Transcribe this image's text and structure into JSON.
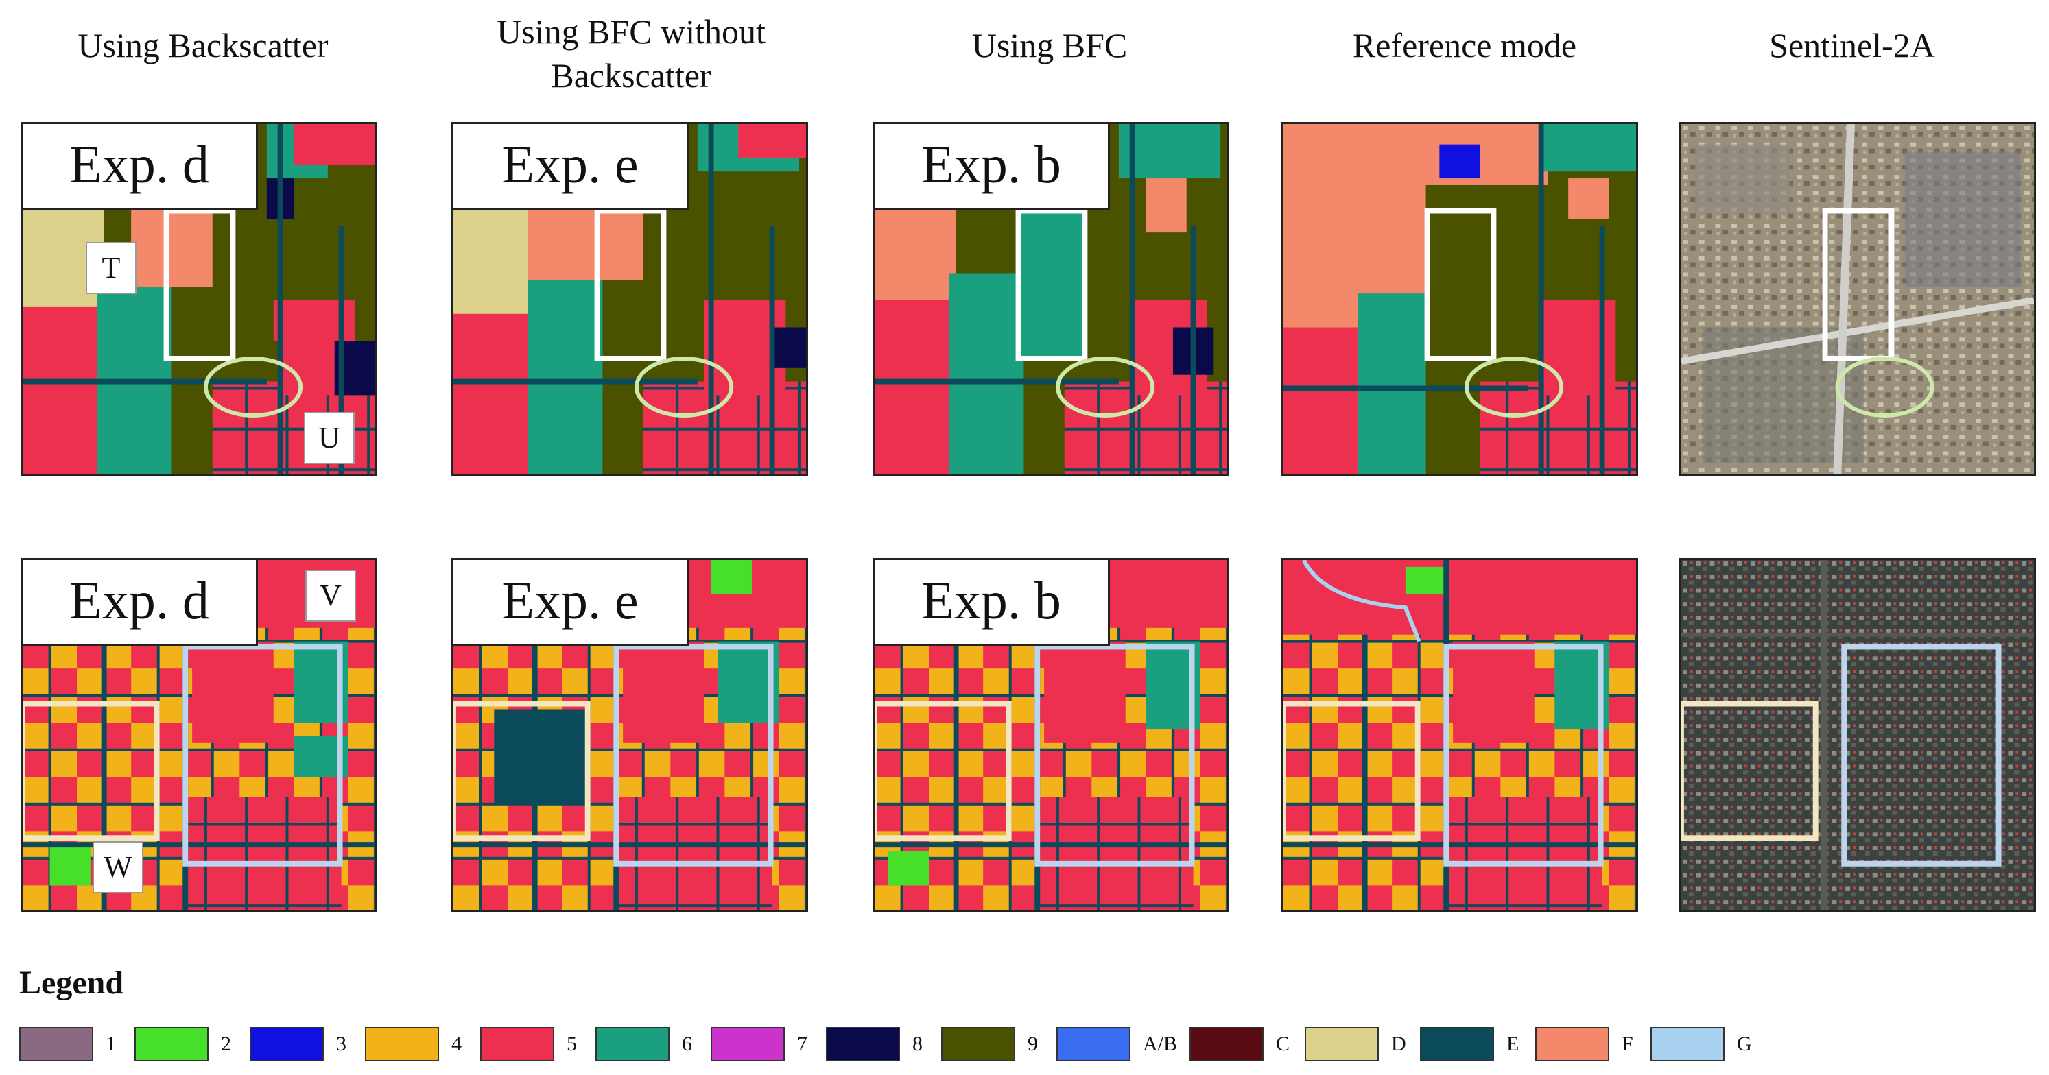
{
  "columns": [
    {
      "title": "Using Backscatter"
    },
    {
      "title": "Using BFC without Backscatter"
    },
    {
      "title": "Using BFC"
    },
    {
      "title": "Reference mode"
    },
    {
      "title": "Sentinel-2A"
    }
  ],
  "row1": {
    "labels": [
      "Exp. d",
      "Exp. e",
      "Exp. b"
    ]
  },
  "row2": {
    "labels": [
      "Exp. d",
      "Exp. e",
      "Exp. b"
    ]
  },
  "tags": {
    "t": "T",
    "u": "U",
    "v": "V",
    "w": "W"
  },
  "legend": {
    "title": "Legend",
    "items": [
      {
        "label": "1",
        "color": "#8a6a82"
      },
      {
        "label": "2",
        "color": "#46e02a"
      },
      {
        "label": "3",
        "color": "#1010e0"
      },
      {
        "label": "4",
        "color": "#f2b21a"
      },
      {
        "label": "5",
        "color": "#ee3050"
      },
      {
        "label": "6",
        "color": "#1aa07e"
      },
      {
        "label": "7",
        "color": "#cc33cc"
      },
      {
        "label": "8",
        "color": "#0a0a4a"
      },
      {
        "label": "9",
        "color": "#4a5200"
      },
      {
        "label": "A/B",
        "color": "#3a6ef0"
      },
      {
        "label": "C",
        "color": "#5a0a12"
      },
      {
        "label": "D",
        "color": "#ddd28c"
      },
      {
        "label": "E",
        "color": "#0b4a5a"
      },
      {
        "label": "F",
        "color": "#f4886a"
      },
      {
        "label": "G",
        "color": "#a8d2f0"
      }
    ]
  }
}
